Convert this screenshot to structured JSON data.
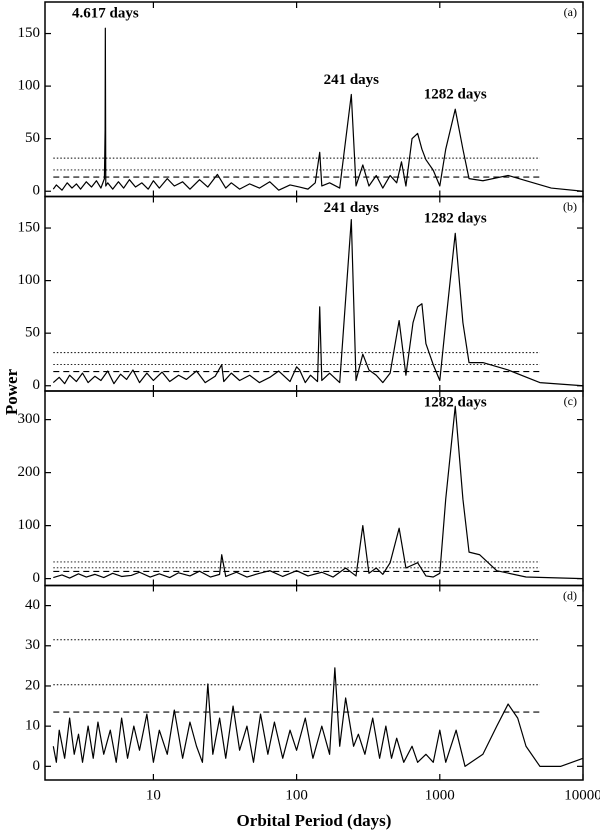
{
  "figure": {
    "ylabel": "Power"
  },
  "chart_data": [
    {
      "type": "line",
      "panel_label": "(a)",
      "xscale": "log",
      "xlim": [
        1.75,
        10000
      ],
      "xticks": [
        10,
        100,
        1000,
        10000
      ],
      "ylim": [
        -5,
        180
      ],
      "yticks": [
        0,
        50,
        100,
        150
      ],
      "hline_span": [
        2,
        5000
      ],
      "hlines": [
        {
          "value": 31.5,
          "style": "dotted"
        },
        {
          "value": 20.3,
          "style": "dotted"
        },
        {
          "value": 13.5,
          "style": "dashed"
        }
      ],
      "annotations": [
        {
          "text": "4.617 days",
          "x": 4.617,
          "y": 155
        },
        {
          "text": "241 days",
          "x": 241,
          "y": 92
        },
        {
          "text": "1282 days",
          "x": 1282,
          "y": 78
        }
      ],
      "x": [
        2,
        2.1,
        2.3,
        2.5,
        2.7,
        2.9,
        3.1,
        3.4,
        3.7,
        4.0,
        4.3,
        4.55,
        4.6,
        4.617,
        4.65,
        4.8,
        5.2,
        5.7,
        6.2,
        6.8,
        7.5,
        8.3,
        9.2,
        10,
        11,
        12.5,
        14,
        16,
        18,
        21,
        24,
        28,
        32,
        35,
        40,
        47,
        55,
        65,
        75,
        90,
        105,
        120,
        135,
        145,
        150,
        170,
        200,
        241,
        260,
        290,
        320,
        360,
        400,
        450,
        500,
        540,
        580,
        640,
        700,
        750,
        800,
        900,
        1000,
        1100,
        1282,
        1450,
        1600,
        2000,
        3000,
        4000,
        6000,
        10000
      ],
      "series": [
        {
          "color": "#000000",
          "values": [
            2,
            6,
            1,
            8,
            3,
            7,
            2,
            9,
            4,
            10,
            3,
            12,
            58,
            155,
            5,
            8,
            2,
            9,
            3,
            11,
            4,
            8,
            2,
            10,
            3,
            12,
            5,
            9,
            2,
            11,
            4,
            16,
            3,
            8,
            2,
            7,
            3,
            9,
            1,
            6,
            4,
            2,
            8,
            37,
            5,
            8,
            3,
            92,
            5,
            25,
            5,
            15,
            3,
            15,
            8,
            28,
            5,
            50,
            55,
            40,
            30,
            20,
            5,
            40,
            78,
            40,
            12,
            10,
            15,
            10,
            3,
            0
          ]
        }
      ]
    },
    {
      "type": "line",
      "panel_label": "(b)",
      "xscale": "log",
      "xlim": [
        1.75,
        10000
      ],
      "xticks": [
        10,
        100,
        1000,
        10000
      ],
      "ylim": [
        -5,
        180
      ],
      "yticks": [
        0,
        50,
        100,
        150
      ],
      "hline_span": [
        2,
        5000
      ],
      "hlines": [
        {
          "value": 31.5,
          "style": "dotted"
        },
        {
          "value": 20.3,
          "style": "dotted"
        },
        {
          "value": 13.5,
          "style": "dashed"
        }
      ],
      "annotations": [
        {
          "text": "241 days",
          "x": 241,
          "y": 158
        },
        {
          "text": "1282 days",
          "x": 1282,
          "y": 145
        }
      ],
      "x": [
        2,
        2.2,
        2.4,
        2.6,
        2.9,
        3.2,
        3.5,
        3.9,
        4.3,
        4.8,
        5.3,
        5.9,
        6.5,
        7.2,
        8,
        9,
        10,
        11.5,
        13,
        15,
        17,
        20,
        23,
        27,
        30,
        31,
        35,
        40,
        47,
        55,
        65,
        75,
        90,
        100,
        105,
        115,
        125,
        140,
        145,
        150,
        170,
        200,
        241,
        260,
        290,
        320,
        360,
        400,
        450,
        520,
        580,
        650,
        700,
        750,
        800,
        900,
        1000,
        1100,
        1282,
        1450,
        1600,
        2000,
        3000,
        5000,
        10000
      ],
      "series": [
        {
          "color": "#000000",
          "values": [
            3,
            8,
            2,
            10,
            4,
            12,
            3,
            9,
            5,
            14,
            2,
            11,
            6,
            15,
            3,
            12,
            5,
            13,
            4,
            10,
            6,
            14,
            3,
            9,
            20,
            4,
            12,
            5,
            10,
            3,
            8,
            14,
            4,
            18,
            15,
            3,
            10,
            4,
            75,
            5,
            12,
            3,
            158,
            5,
            30,
            15,
            10,
            3,
            12,
            62,
            10,
            60,
            75,
            78,
            40,
            20,
            5,
            60,
            145,
            60,
            22,
            22,
            15,
            3,
            0
          ]
        }
      ]
    },
    {
      "type": "line",
      "panel_label": "(c)",
      "xscale": "log",
      "xlim": [
        1.75,
        10000
      ],
      "xticks": [
        10,
        100,
        1000,
        10000
      ],
      "ylim": [
        -13,
        354
      ],
      "yticks": [
        0,
        100,
        200,
        300
      ],
      "hline_span": [
        2,
        5000
      ],
      "hlines": [
        {
          "value": 31.5,
          "style": "dotted"
        },
        {
          "value": 20.3,
          "style": "dotted"
        },
        {
          "value": 13.5,
          "style": "dashed"
        }
      ],
      "annotations": [
        {
          "text": "1282 days",
          "x": 1282,
          "y": 325
        }
      ],
      "x": [
        2,
        2.3,
        2.6,
        3,
        3.4,
        3.9,
        4.5,
        5.2,
        6,
        7,
        8,
        9.5,
        11,
        13,
        15,
        18,
        21,
        25,
        29,
        30,
        32,
        38,
        45,
        55,
        65,
        80,
        100,
        120,
        150,
        180,
        220,
        260,
        290,
        320,
        360,
        400,
        450,
        520,
        580,
        700,
        800,
        900,
        1000,
        1100,
        1282,
        1450,
        1600,
        1900,
        2500,
        4000,
        10000
      ],
      "series": [
        {
          "color": "#000000",
          "values": [
            2,
            7,
            1,
            9,
            3,
            8,
            2,
            10,
            4,
            6,
            12,
            3,
            9,
            2,
            11,
            5,
            14,
            3,
            8,
            45,
            4,
            12,
            3,
            10,
            15,
            4,
            15,
            5,
            12,
            3,
            20,
            5,
            100,
            10,
            20,
            8,
            30,
            95,
            20,
            30,
            5,
            3,
            10,
            150,
            325,
            150,
            50,
            45,
            15,
            3,
            0
          ]
        }
      ]
    },
    {
      "type": "line",
      "panel_label": "(d)",
      "xscale": "log",
      "xlim": [
        1.75,
        10000
      ],
      "xticks": [
        10,
        100,
        1000,
        10000
      ],
      "xlabel": "Orbital Period (days)",
      "ylim": [
        -3.4,
        45
      ],
      "yticks": [
        0,
        10,
        20,
        30,
        40
      ],
      "hline_span": [
        2,
        5000
      ],
      "hlines": [
        {
          "value": 31.5,
          "style": "dotted"
        },
        {
          "value": 20.3,
          "style": "dotted"
        },
        {
          "value": 13.5,
          "style": "dashed"
        }
      ],
      "annotations": [],
      "x": [
        2,
        2.1,
        2.2,
        2.4,
        2.6,
        2.8,
        3,
        3.2,
        3.5,
        3.8,
        4.1,
        4.5,
        5,
        5.5,
        6,
        6.6,
        7.3,
        8,
        9,
        10,
        11,
        12.5,
        14,
        16,
        18,
        20,
        22,
        24,
        26,
        29,
        32,
        36,
        40,
        45,
        50,
        56,
        63,
        70,
        80,
        90,
        100,
        115,
        130,
        150,
        170,
        185,
        200,
        220,
        250,
        270,
        300,
        340,
        380,
        420,
        460,
        500,
        560,
        640,
        700,
        800,
        900,
        1000,
        1100,
        1300,
        1500,
        2000,
        2500,
        3000,
        3500,
        4000,
        5000,
        7000,
        10000
      ],
      "series": [
        {
          "color": "#000000",
          "values": [
            5,
            1,
            9,
            2,
            12,
            3,
            8,
            1,
            10,
            2,
            11,
            3,
            9,
            1,
            12,
            2,
            10,
            4,
            13,
            1,
            9,
            3,
            14,
            2,
            11,
            5,
            1,
            20.5,
            3,
            12,
            2,
            15,
            4,
            10,
            1,
            13,
            3,
            11,
            2,
            9,
            4,
            12,
            2,
            10,
            3,
            24.5,
            5,
            17,
            5,
            8,
            3,
            12,
            2,
            10,
            2,
            7,
            1,
            5,
            1,
            3,
            1,
            9,
            1,
            9,
            0,
            3,
            10,
            15.5,
            12,
            5,
            0,
            0,
            2
          ]
        }
      ]
    }
  ]
}
